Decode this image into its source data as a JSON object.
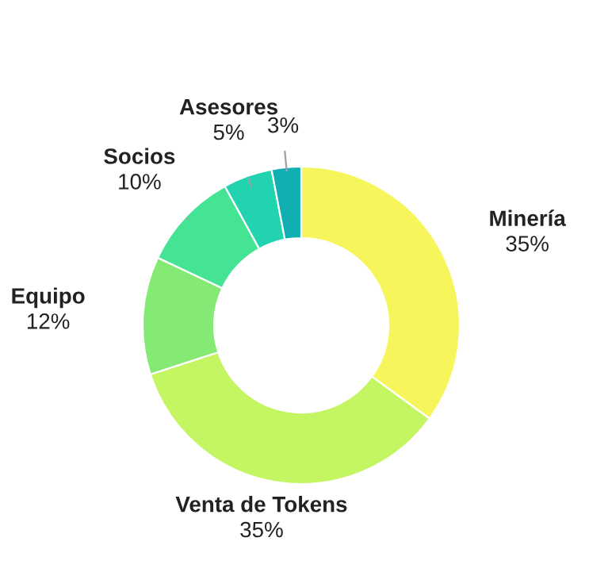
{
  "chart_data": {
    "type": "donut",
    "categories": [
      "Minería",
      "Venta de Tokens",
      "Equipo",
      "Socios",
      "Asesores",
      null
    ],
    "values": [
      35,
      35,
      12,
      10,
      5,
      3
    ],
    "value_labels": [
      "35%",
      "35%",
      "12%",
      "10%",
      "5%",
      "3%"
    ],
    "colors": [
      "#f6f65c",
      "#c4f562",
      "#84ea74",
      "#45e394",
      "#22d3b0",
      "#12afb2"
    ],
    "legend": false
  }
}
